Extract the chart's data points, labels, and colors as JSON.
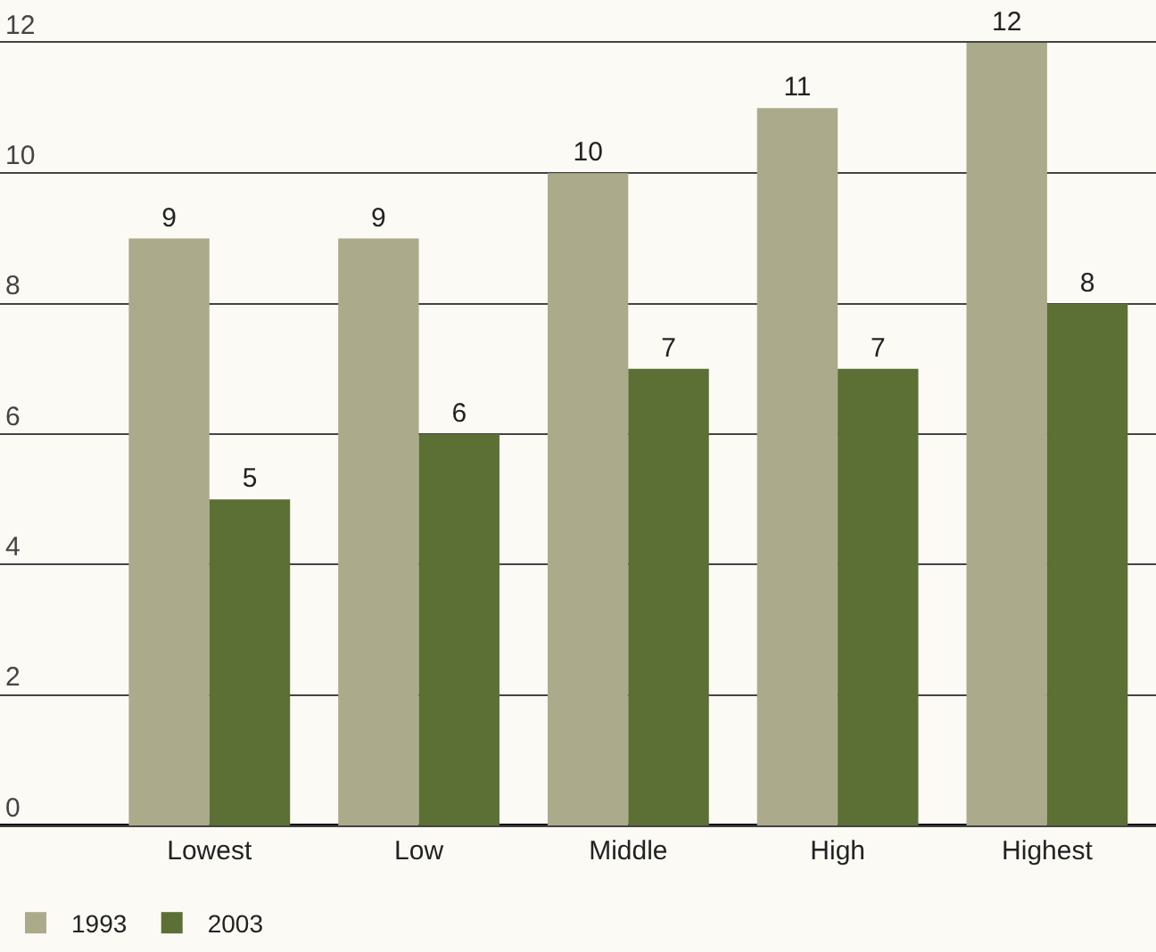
{
  "chart_data": {
    "type": "bar",
    "categories": [
      "Lowest",
      "Low",
      "Middle",
      "High",
      "Highest"
    ],
    "series": [
      {
        "name": "1993",
        "color": "#abab8c",
        "values": [
          9,
          9,
          10,
          11,
          12
        ]
      },
      {
        "name": "2003",
        "color": "#5c6f34",
        "values": [
          5,
          6,
          7,
          7,
          8
        ]
      }
    ],
    "ylim": [
      0,
      12
    ],
    "yticks": [
      0,
      2,
      4,
      6,
      8,
      10,
      12
    ],
    "grid": "y",
    "legend": "bottom left",
    "data_labels": true
  }
}
